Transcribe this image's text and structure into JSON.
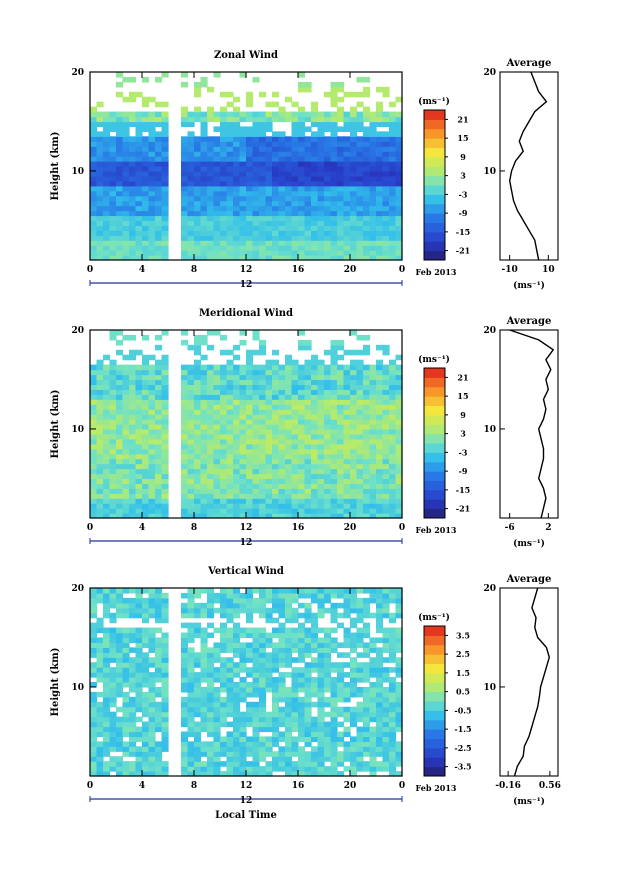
{
  "page": {
    "background": "#ffffff",
    "date_label": "Feb 2013",
    "day_label": "12"
  },
  "chart_data": [
    {
      "type": "heatmap",
      "title": "Zonal Wind",
      "xlabel": "",
      "ylabel": "Height (km)",
      "xlim": [
        0,
        24
      ],
      "ylim": [
        1,
        20
      ],
      "xticks": [
        "0",
        "4",
        "8",
        "12",
        "16",
        "20",
        "0"
      ],
      "yticks": [
        "10",
        "20"
      ],
      "colorbar": {
        "unit": "(ms⁻¹)",
        "ticks": [
          "21",
          "15",
          "9",
          "3",
          "-3",
          "-9",
          "-15",
          "-21"
        ],
        "range": [
          -24,
          24
        ]
      },
      "profile": {
        "title": "Average",
        "xlabel": "(ms⁻¹)",
        "xticks": [
          "-10",
          "10"
        ],
        "xlim": [
          -15,
          15
        ],
        "heights": [
          1,
          2,
          3,
          4,
          5,
          6,
          7,
          8,
          9,
          10,
          11,
          12,
          13,
          14,
          15,
          16,
          17,
          18,
          19,
          20
        ],
        "values": [
          5,
          4,
          3,
          0,
          -3,
          -6,
          -8,
          -9,
          -10,
          -9,
          -7,
          -3,
          -5,
          -3,
          0,
          3,
          9,
          5,
          3,
          1
        ]
      }
    },
    {
      "type": "heatmap",
      "title": "Meridional Wind",
      "xlabel": "",
      "ylabel": "Height (km)",
      "xlim": [
        0,
        24
      ],
      "ylim": [
        1,
        20
      ],
      "xticks": [
        "0",
        "4",
        "8",
        "12",
        "16",
        "20",
        "0"
      ],
      "yticks": [
        "10",
        "20"
      ],
      "colorbar": {
        "unit": "(ms⁻¹)",
        "ticks": [
          "21",
          "15",
          "9",
          "3",
          "-3",
          "-9",
          "-15",
          "-21"
        ],
        "range": [
          -24,
          24
        ]
      },
      "profile": {
        "title": "Average",
        "xlabel": "(ms⁻¹)",
        "xticks": [
          "-6",
          "2"
        ],
        "xlim": [
          -8,
          4
        ],
        "heights": [
          1,
          2,
          3,
          4,
          5,
          6,
          7,
          8,
          9,
          10,
          11,
          12,
          13,
          14,
          15,
          16,
          17,
          18,
          19,
          20
        ],
        "values": [
          0.5,
          1,
          1.5,
          1,
          0,
          0.5,
          1,
          1,
          0.5,
          0,
          1,
          1.5,
          1,
          2,
          1.5,
          2.5,
          1.5,
          3,
          0,
          -6
        ]
      }
    },
    {
      "type": "heatmap",
      "title": "Vertical Wind",
      "xlabel": "Local Time",
      "ylabel": "Height (km)",
      "xlim": [
        0,
        24
      ],
      "ylim": [
        1,
        20
      ],
      "xticks": [
        "0",
        "4",
        "8",
        "12",
        "16",
        "20",
        "0"
      ],
      "yticks": [
        "10",
        "20"
      ],
      "colorbar": {
        "unit": "(ms⁻¹)",
        "ticks": [
          "3.5",
          "2.5",
          "1.5",
          "0.5",
          "-0.5",
          "-1.5",
          "-2.5",
          "-3.5"
        ],
        "range": [
          -4,
          4
        ]
      },
      "profile": {
        "title": "Average",
        "xlabel": "(ms⁻¹)",
        "xticks": [
          "-0.16",
          "0.56"
        ],
        "xlim": [
          -0.3,
          0.7
        ],
        "heights": [
          1,
          2,
          3,
          4,
          5,
          6,
          7,
          8,
          9,
          10,
          11,
          12,
          13,
          14,
          15,
          16,
          17,
          18,
          19,
          20
        ],
        "values": [
          -0.05,
          0.0,
          0.1,
          0.12,
          0.2,
          0.25,
          0.3,
          0.35,
          0.38,
          0.4,
          0.45,
          0.5,
          0.55,
          0.5,
          0.35,
          0.3,
          0.32,
          0.25,
          0.3,
          0.35
        ]
      }
    }
  ]
}
